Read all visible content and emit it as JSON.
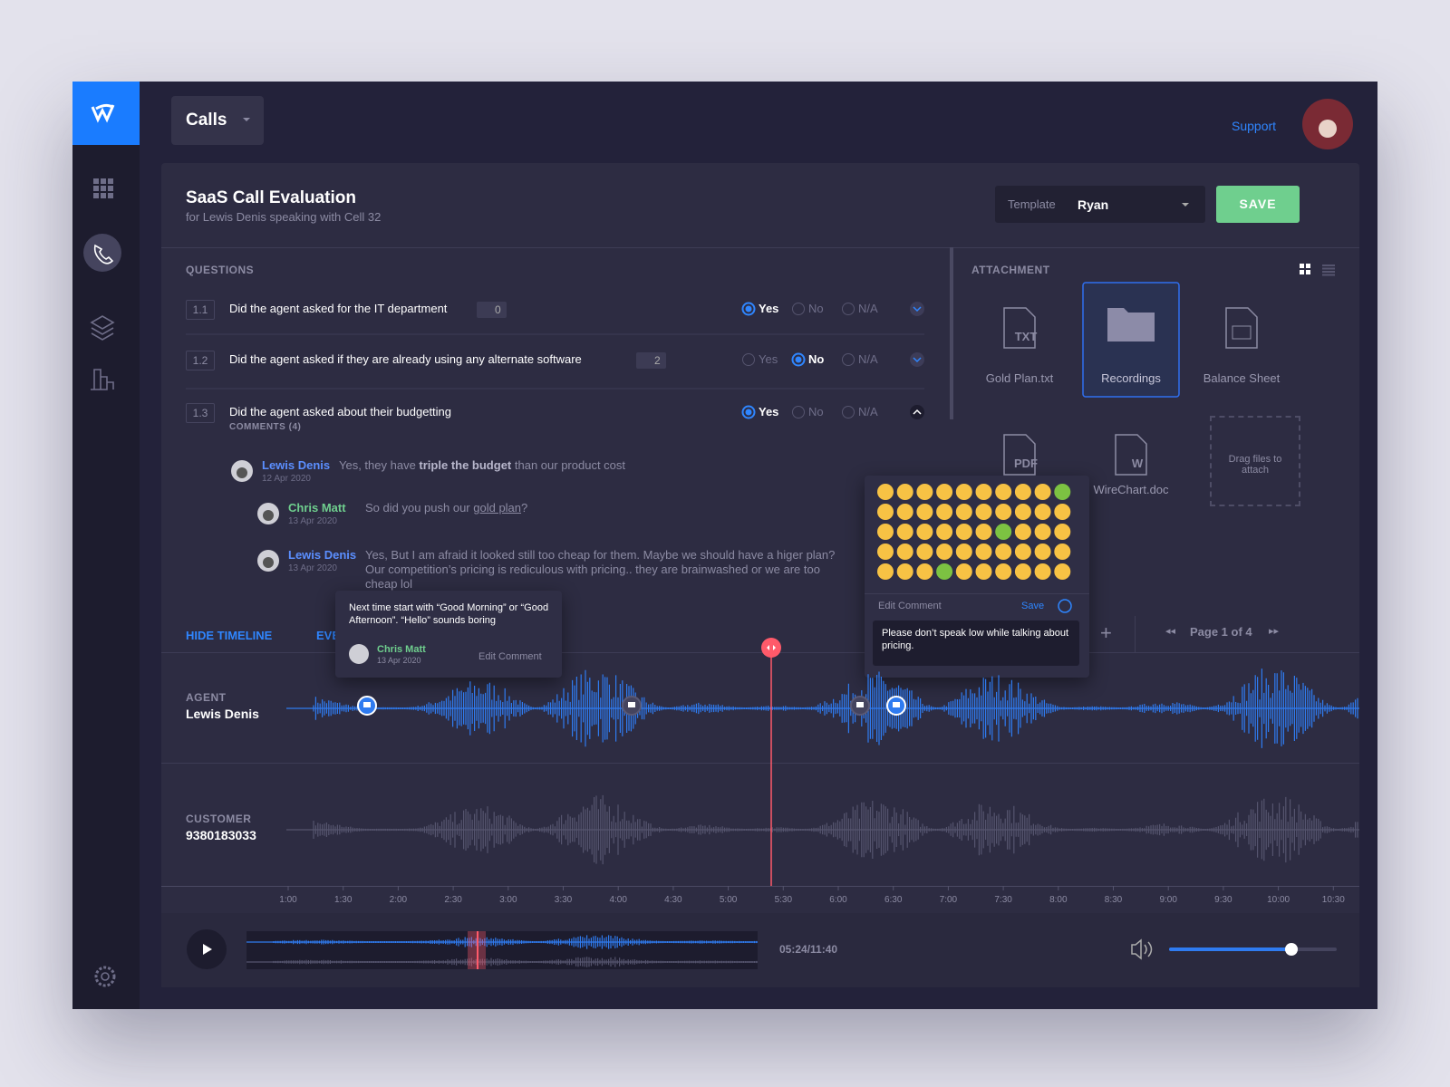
{
  "nav": {
    "section": "Calls",
    "support": "Support"
  },
  "header": {
    "title": "SaaS Call Evaluation",
    "subtitle": "for Lewis Denis speaking with Cell 32",
    "template_label": "Template",
    "template_value": "Ryan",
    "save": "SAVE"
  },
  "questions": {
    "heading": "QUESTIONS",
    "options": [
      "Yes",
      "No",
      "N/A"
    ],
    "items": [
      {
        "number": "1.1",
        "text": "Did the agent asked for the IT department",
        "comments": "0",
        "answer": 0
      },
      {
        "number": "1.2",
        "text": "Did the agent asked if they are already using any alternate software",
        "comments": "2",
        "answer": 1
      },
      {
        "number": "1.3",
        "text": "Did the agent asked about their budgetting",
        "answer": 0
      }
    ],
    "comments_label": "COMMENTS (4)",
    "comments": [
      {
        "author": "Lewis Denis",
        "date": "12 Apr 2020",
        "parts": [
          {
            "text": "Yes, they have "
          },
          {
            "text": "triple the budget",
            "style": "bold"
          },
          {
            "text": " than our product cost"
          }
        ]
      },
      {
        "author": "Chris Matt",
        "date": "13 Apr 2020",
        "parts": [
          {
            "text": "So did you push our "
          },
          {
            "text": "gold plan",
            "style": "underline"
          },
          {
            "text": "?"
          }
        ]
      },
      {
        "author": "Lewis Denis",
        "date": "13 Apr 2020",
        "parts": [
          {
            "text": "Yes, But I am afraid it looked still too cheap for them. Maybe we should have a higer plan? Our competition’s  pricing is rediculous with pricing.. they are brainwashed or we are too cheap lol"
          }
        ]
      }
    ]
  },
  "attachments": {
    "heading": "ATTACHMENT",
    "files": [
      {
        "name": "Gold Plan.txt",
        "kind": "TXT"
      },
      {
        "name": "Recordings"
      },
      {
        "name": "Balance Sheet"
      },
      {
        "name": "",
        "kind": "PDF"
      },
      {
        "name": "WireChart.doc",
        "kind": "W"
      }
    ],
    "drop": "Drag files to attach"
  },
  "emoji_popup": {
    "title": "Edit Comment",
    "save": "Save",
    "comment": "Please don’t speak low while talking about pricing."
  },
  "timeline": {
    "hide": "HIDE TIMELINE",
    "events": "EVENTS",
    "page": "Page 1 of 4",
    "popup": {
      "text": "Next time start with “Good Morning” or “Good Afternoon”.  “Hello” sounds boring",
      "author": "Chris Matt",
      "date": "13 Apr 2020",
      "action": "Edit Comment"
    },
    "tracks": [
      {
        "role": "AGENT",
        "name": "Lewis Denis"
      },
      {
        "role": "CUSTOMER",
        "name": "9380183033"
      }
    ],
    "ticks": [
      "1:00",
      "1:30",
      "2:00",
      "2:30",
      "3:00",
      "3:30",
      "4:00",
      "4:30",
      "5:00",
      "5:30",
      "6:00",
      "6:30",
      "7:00",
      "7:30",
      "8:00",
      "8:30",
      "9:00",
      "9:30",
      "10:00",
      "10:30"
    ]
  },
  "player": {
    "time": "05:24/11:40"
  }
}
